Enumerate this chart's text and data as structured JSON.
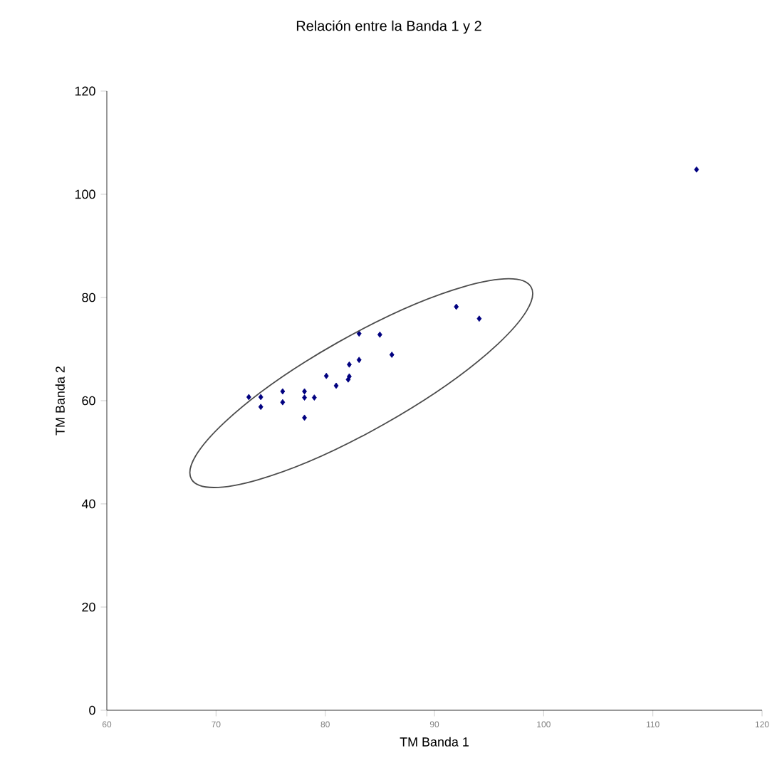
{
  "chart_data": {
    "type": "scatter",
    "title": "Relación entre la Banda 1 y 2",
    "xlabel": "TM Banda 1",
    "ylabel": "TM Banda 2",
    "x": [
      73.0,
      74.1,
      74.1,
      76.1,
      76.1,
      78.1,
      78.1,
      79.0,
      78.1,
      80.1,
      81.0,
      82.1,
      82.2,
      82.2,
      83.1,
      83.1,
      85.0,
      86.1,
      92.0,
      94.1,
      114.0
    ],
    "values": [
      60.7,
      60.7,
      58.8,
      61.8,
      59.7,
      61.8,
      60.6,
      60.6,
      56.7,
      64.8,
      62.9,
      64.1,
      64.7,
      67.0,
      67.9,
      73.0,
      72.8,
      68.9,
      78.2,
      75.9,
      104.8
    ],
    "color": "#000080",
    "marker": "diamond",
    "xlim": [
      60,
      120
    ],
    "xticks": [
      60,
      70,
      80,
      90,
      100,
      110,
      120
    ],
    "ylim": [
      0,
      120
    ],
    "yticks": [
      0,
      20,
      40,
      60,
      80,
      100,
      120
    ],
    "grid": false
  }
}
